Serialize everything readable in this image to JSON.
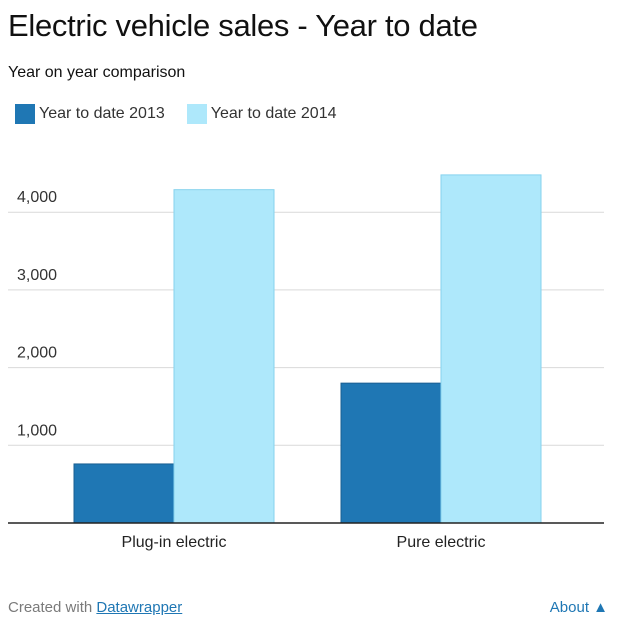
{
  "chart_data": {
    "type": "bar",
    "title": "Electric vehicle sales - Year to date",
    "subtitle": "Year on year comparison",
    "categories": [
      "Plug-in electric",
      "Pure electric"
    ],
    "series": [
      {
        "name": "Year to date 2013",
        "color": "#1f77b4",
        "values": [
          760,
          1800
        ]
      },
      {
        "name": "Year to date 2014",
        "color": "#aee8fb",
        "values": [
          4290,
          4480
        ]
      }
    ],
    "y_ticks": [
      "1,000",
      "2,000",
      "3,000",
      "4,000"
    ],
    "y_tick_values": [
      1000,
      2000,
      3000,
      4000
    ],
    "ylim": [
      0,
      4700
    ],
    "grid": true,
    "legend_position": "top-left"
  },
  "footer": {
    "credit_prefix": "Created with ",
    "credit_link": "Datawrapper",
    "about_label": "About ▲"
  }
}
